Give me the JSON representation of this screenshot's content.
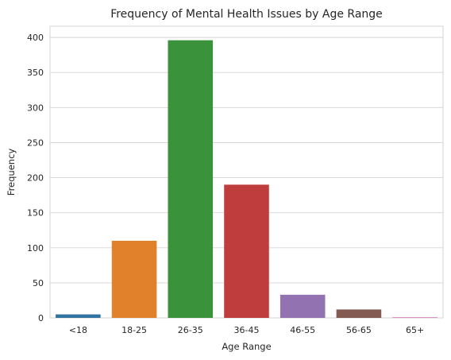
{
  "chart_data": {
    "type": "bar",
    "title": "Frequency of Mental Health Issues by Age Range",
    "xlabel": "Age Range",
    "ylabel": "Frequency",
    "categories": [
      "<18",
      "18-25",
      "26-35",
      "36-45",
      "46-55",
      "56-65",
      "65+"
    ],
    "values": [
      5,
      110,
      396,
      190,
      33,
      12,
      1
    ],
    "colors": [
      "#3274a1",
      "#e1812c",
      "#3a923a",
      "#c03d3e",
      "#9372b2",
      "#845b53",
      "#d684bd"
    ],
    "ylim": [
      0,
      416
    ],
    "yticks": [
      0,
      50,
      100,
      150,
      200,
      250,
      300,
      350,
      400
    ],
    "grid": "horizontal",
    "legend": "none"
  }
}
